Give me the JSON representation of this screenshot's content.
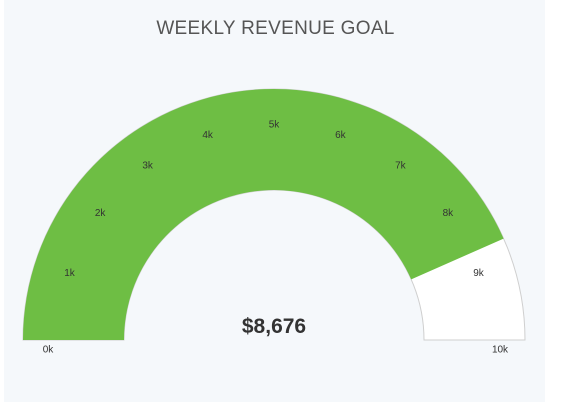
{
  "chart_data": {
    "type": "gauge",
    "title": "WEEKLY REVENUE GOAL",
    "min": 0,
    "max": 10000,
    "value": 8676,
    "value_label": "$8,676",
    "ticks": [
      {
        "value": 0,
        "label": "0k"
      },
      {
        "value": 1000,
        "label": "1k"
      },
      {
        "value": 2000,
        "label": "2k"
      },
      {
        "value": 3000,
        "label": "3k"
      },
      {
        "value": 4000,
        "label": "4k"
      },
      {
        "value": 5000,
        "label": "5k"
      },
      {
        "value": 6000,
        "label": "6k"
      },
      {
        "value": 7000,
        "label": "7k"
      },
      {
        "value": 8000,
        "label": "8k"
      },
      {
        "value": 9000,
        "label": "9k"
      },
      {
        "value": 10000,
        "label": "10k"
      }
    ],
    "colors": {
      "fill": "#6ebe44",
      "track": "#ffffff",
      "track_border": "#cfcfcf"
    }
  }
}
